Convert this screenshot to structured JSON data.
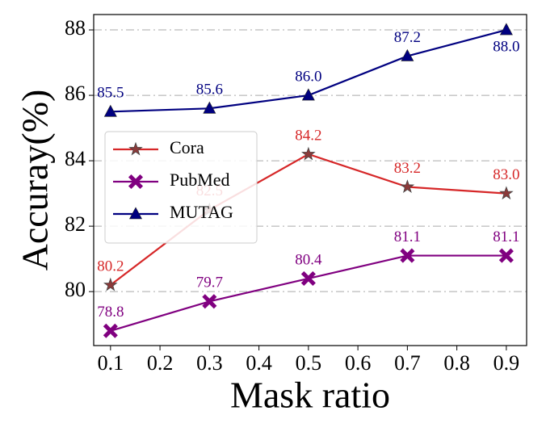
{
  "chart_data": {
    "type": "line",
    "xlabel": "Mask ratio",
    "ylabel": "Accuray(%)",
    "x": [
      0.1,
      0.3,
      0.5,
      0.7,
      0.9
    ],
    "series": [
      {
        "name": "Cora",
        "color": "#d62728",
        "marker": "star",
        "values": [
          80.2,
          82.5,
          84.2,
          83.2,
          83.0
        ],
        "value_labels": [
          "80.2",
          "82.5",
          "84.2",
          "83.2",
          "83.0"
        ]
      },
      {
        "name": "PubMed",
        "color": "#800080",
        "marker": "x",
        "values": [
          78.8,
          79.7,
          80.4,
          81.1,
          81.1
        ],
        "value_labels": [
          "78.8",
          "79.7",
          "80.4",
          "81.1",
          "81.1"
        ]
      },
      {
        "name": "MUTAG",
        "color": "#000080",
        "marker": "triangle",
        "values": [
          85.5,
          85.6,
          86.0,
          87.2,
          88.0
        ],
        "value_labels": [
          "85.5",
          "85.6",
          "86.0",
          "87.2",
          "88.0"
        ]
      }
    ],
    "xlim": [
      0.066,
      0.941
    ],
    "ylim": [
      78.35,
      88.47
    ],
    "xticks": [
      0.1,
      0.2,
      0.3,
      0.4,
      0.5,
      0.6,
      0.7,
      0.8,
      0.9
    ],
    "yticks": [
      80,
      82,
      84,
      86,
      88
    ],
    "grid": true,
    "legend": "center left"
  }
}
